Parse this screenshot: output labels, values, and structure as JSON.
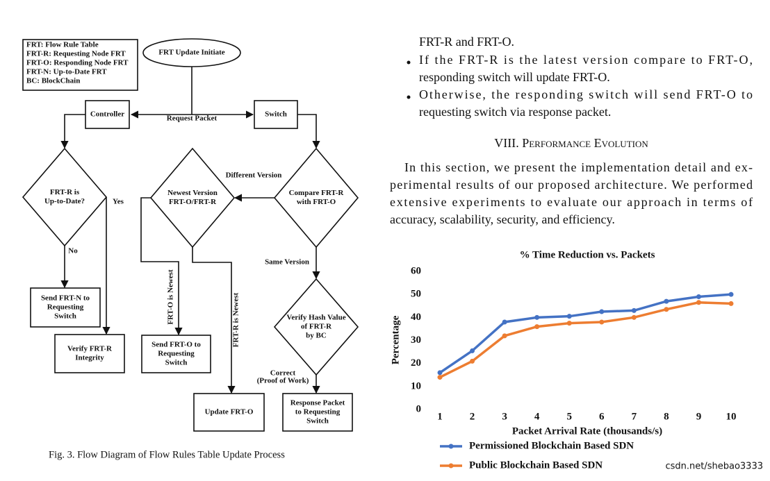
{
  "diagram": {
    "legend": [
      "FRT: Flow Rule Table",
      "FRT-R: Requesting Node FRT",
      "FRT-O: Responding Node FRT",
      "FRT-N: Up-to-Date FRT",
      "BC: BlockChain"
    ],
    "nodes": [
      {
        "lines": [
          "FRT Update Initiate"
        ]
      },
      {
        "lines": [
          "Controller"
        ]
      },
      {
        "lines": [
          "Switch"
        ]
      },
      {
        "lines": [
          "FRT-R is",
          "Up-to-Date?"
        ]
      },
      {
        "lines": [
          "Compare FRT-R",
          "with FRT-O"
        ]
      },
      {
        "lines": [
          "Newest Version",
          "FRT-O/FRT-R"
        ]
      },
      {
        "lines": [
          "Send FRT-N to",
          "Requesting",
          "Switch"
        ]
      },
      {
        "lines": [
          "Verify FRT-R",
          "Integrity"
        ]
      },
      {
        "lines": [
          "Send FRT-O to",
          "Requesting",
          "Switch"
        ]
      },
      {
        "lines": [
          "Update FRT-O"
        ]
      },
      {
        "lines": [
          "Verify Hash Value",
          "of FRT-R",
          "by BC"
        ]
      },
      {
        "lines": [
          "Response Packet",
          "to Requesting",
          "Switch"
        ]
      }
    ],
    "edge_labels": [
      "Request Packet",
      "Different Version",
      "No",
      "Yes",
      "FRT-O is Newest",
      "FRT-R is Newest",
      "Same Version",
      "Correct",
      "(Proof of Work)"
    ],
    "caption": "Fig. 3.  Flow Diagram of Flow Rules Table Update Process"
  },
  "text": {
    "lines": [
      "FRT-R and FRT-O.",
      "If the FRT-R is the latest version compare to FRT-O,",
      "responding switch will update FRT-O.",
      "Otherwise, the responding switch will send FRT-O to",
      "requesting switch via response packet."
    ],
    "heading": "VIII. Performance Evolution",
    "paragraph": [
      "In this section, we present the implementation detail and ex-",
      "perimental results of our proposed architecture. We performed",
      "extensive experiments to evaluate our approach in terms of",
      "accuracy, scalability, security, and efficiency."
    ]
  },
  "chart_data": {
    "type": "line",
    "title": "% Time Reduction vs. Packets",
    "x_label": "Packet Arrival Rate (thousands/s)",
    "y_label": "Percentage",
    "x": [
      1,
      2,
      3,
      4,
      5,
      6,
      7,
      8,
      9,
      10
    ],
    "xlim": [
      1,
      10
    ],
    "ylim": [
      0,
      60
    ],
    "yticks": [
      0,
      10,
      20,
      30,
      40,
      50,
      60
    ],
    "series": [
      {
        "name": "Permissioned Blockchain Based SDN",
        "color": "#4472c4",
        "values": [
          16,
          25.5,
          38,
          40,
          40.5,
          42.5,
          43,
          47,
          49,
          50
        ]
      },
      {
        "name": "Public Blockchain Based SDN",
        "color": "#ed7d31",
        "values": [
          14,
          21,
          32,
          36,
          37.5,
          38,
          40,
          43.5,
          46.5,
          46
        ]
      }
    ]
  },
  "watermark": "csdn.net/shebao3333"
}
